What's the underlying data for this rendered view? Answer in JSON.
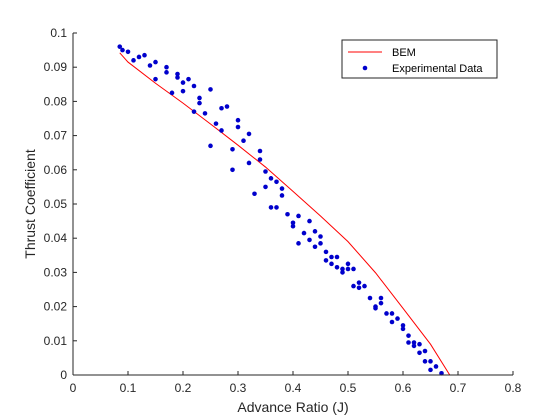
{
  "chart_data": {
    "type": "line",
    "xlabel": "Advance Ratio (J)",
    "ylabel": "Thrust Coefficient",
    "xlim": [
      0,
      0.8
    ],
    "ylim": [
      0,
      0.1
    ],
    "xticks": [
      0,
      0.1,
      0.2,
      0.3,
      0.4,
      0.5,
      0.6,
      0.7,
      0.8
    ],
    "yticks": [
      0,
      0.01,
      0.02,
      0.03,
      0.04,
      0.05,
      0.06,
      0.07,
      0.08,
      0.09,
      0.1
    ],
    "xtick_labels": [
      "0",
      "0.1",
      "0.2",
      "0.3",
      "0.4",
      "0.5",
      "0.6",
      "0.7",
      "0.8"
    ],
    "ytick_labels": [
      "0",
      "0.01",
      "0.02",
      "0.03",
      "0.04",
      "0.05",
      "0.06",
      "0.07",
      "0.08",
      "0.09",
      "0.1"
    ],
    "grid": false,
    "legend_position": "top-right",
    "series": [
      {
        "name": "BEM",
        "style": "line",
        "color": "#ff0000",
        "x": [
          0.085,
          0.1,
          0.15,
          0.2,
          0.25,
          0.3,
          0.35,
          0.4,
          0.45,
          0.5,
          0.55,
          0.6,
          0.65,
          0.685
        ],
        "y": [
          0.0942,
          0.0915,
          0.0853,
          0.0795,
          0.0734,
          0.0672,
          0.0608,
          0.0537,
          0.0465,
          0.039,
          0.0299,
          0.0195,
          0.009,
          0.0
        ]
      },
      {
        "name": "Experimental Data",
        "style": "scatter",
        "color": "#0000cc",
        "x": [
          0.085,
          0.09,
          0.1,
          0.11,
          0.12,
          0.13,
          0.14,
          0.15,
          0.15,
          0.17,
          0.17,
          0.18,
          0.19,
          0.19,
          0.2,
          0.2,
          0.21,
          0.22,
          0.22,
          0.23,
          0.23,
          0.24,
          0.25,
          0.25,
          0.26,
          0.27,
          0.27,
          0.28,
          0.29,
          0.29,
          0.3,
          0.3,
          0.31,
          0.32,
          0.32,
          0.33,
          0.34,
          0.34,
          0.35,
          0.35,
          0.36,
          0.36,
          0.37,
          0.37,
          0.38,
          0.38,
          0.39,
          0.4,
          0.4,
          0.41,
          0.41,
          0.42,
          0.43,
          0.43,
          0.44,
          0.44,
          0.45,
          0.45,
          0.46,
          0.46,
          0.47,
          0.47,
          0.48,
          0.48,
          0.49,
          0.49,
          0.5,
          0.5,
          0.51,
          0.51,
          0.52,
          0.52,
          0.53,
          0.54,
          0.55,
          0.55,
          0.56,
          0.56,
          0.57,
          0.58,
          0.58,
          0.59,
          0.6,
          0.6,
          0.61,
          0.61,
          0.62,
          0.62,
          0.63,
          0.63,
          0.64,
          0.64,
          0.65,
          0.65,
          0.66,
          0.67
        ],
        "y": [
          0.096,
          0.095,
          0.0945,
          0.092,
          0.093,
          0.0935,
          0.0905,
          0.0915,
          0.0865,
          0.0885,
          0.09,
          0.0825,
          0.088,
          0.087,
          0.0855,
          0.083,
          0.0865,
          0.0845,
          0.077,
          0.081,
          0.0795,
          0.0765,
          0.0835,
          0.067,
          0.0735,
          0.078,
          0.0715,
          0.0785,
          0.066,
          0.06,
          0.0725,
          0.0745,
          0.0685,
          0.062,
          0.0705,
          0.053,
          0.0655,
          0.063,
          0.055,
          0.0595,
          0.049,
          0.0575,
          0.0565,
          0.049,
          0.0545,
          0.0525,
          0.047,
          0.0445,
          0.0435,
          0.0465,
          0.0385,
          0.0415,
          0.045,
          0.0395,
          0.042,
          0.0375,
          0.0405,
          0.0385,
          0.036,
          0.0335,
          0.0345,
          0.0325,
          0.0345,
          0.0315,
          0.031,
          0.03,
          0.0325,
          0.031,
          0.031,
          0.026,
          0.027,
          0.0255,
          0.026,
          0.0225,
          0.02,
          0.0195,
          0.0225,
          0.021,
          0.018,
          0.0155,
          0.018,
          0.0165,
          0.0135,
          0.0145,
          0.0115,
          0.0095,
          0.0095,
          0.0085,
          0.0065,
          0.009,
          0.007,
          0.004,
          0.004,
          0.0015,
          0.0025,
          0.0005
        ]
      }
    ]
  }
}
